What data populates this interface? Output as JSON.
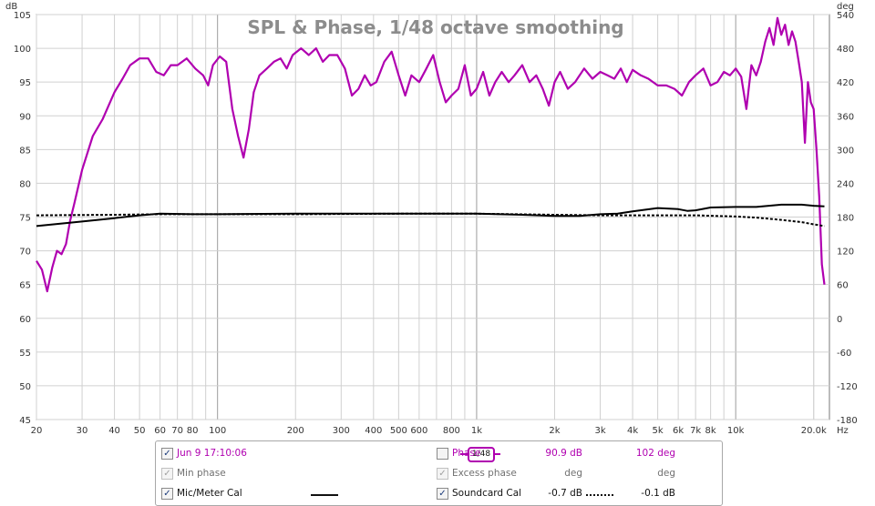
{
  "chart_data": {
    "type": "line",
    "title": "SPL & Phase, 1/48 octave smoothing",
    "y_left_unit": "dB",
    "y_right_unit": "deg",
    "x_unit": "Hz",
    "x_scale": "log",
    "xlim": [
      20,
      23000
    ],
    "ylim_left": [
      45,
      105
    ],
    "ylim_right": [
      -180,
      540
    ],
    "x_tick_labels": [
      {
        "v": 20,
        "t": "20"
      },
      {
        "v": 30,
        "t": "30"
      },
      {
        "v": 40,
        "t": "40"
      },
      {
        "v": 50,
        "t": "50"
      },
      {
        "v": 60,
        "t": "60"
      },
      {
        "v": 70,
        "t": "70"
      },
      {
        "v": 80,
        "t": "80"
      },
      {
        "v": 100,
        "t": "100"
      },
      {
        "v": 200,
        "t": "200"
      },
      {
        "v": 300,
        "t": "300"
      },
      {
        "v": 400,
        "t": "400"
      },
      {
        "v": 500,
        "t": "500"
      },
      {
        "v": 600,
        "t": "600"
      },
      {
        "v": 800,
        "t": "800"
      },
      {
        "v": 1000,
        "t": "1k"
      },
      {
        "v": 2000,
        "t": "2k"
      },
      {
        "v": 3000,
        "t": "3k"
      },
      {
        "v": 4000,
        "t": "4k"
      },
      {
        "v": 5000,
        "t": "5k"
      },
      {
        "v": 6000,
        "t": "6k"
      },
      {
        "v": 7000,
        "t": "7k"
      },
      {
        "v": 8000,
        "t": "8k"
      },
      {
        "v": 10000,
        "t": "10k"
      },
      {
        "v": 20000,
        "t": "20.0k"
      }
    ],
    "y_left_ticks": [
      45,
      50,
      55,
      60,
      65,
      70,
      75,
      80,
      85,
      90,
      95,
      100,
      105
    ],
    "y_right_ticks": [
      -180,
      -120,
      -60,
      0,
      60,
      120,
      180,
      240,
      300,
      360,
      420,
      480,
      540
    ],
    "grid": true,
    "series": [
      {
        "name": "Jun 9 17:10:06",
        "color": "#b000b0",
        "axis": "left",
        "points": [
          [
            20,
            68.5
          ],
          [
            21,
            67.2
          ],
          [
            22,
            64
          ],
          [
            23,
            67.5
          ],
          [
            24,
            70
          ],
          [
            25,
            69.5
          ],
          [
            26,
            71
          ],
          [
            27,
            74.5
          ],
          [
            28,
            77
          ],
          [
            30,
            82
          ],
          [
            33,
            87
          ],
          [
            36,
            89.5
          ],
          [
            40,
            93.5
          ],
          [
            43,
            95.5
          ],
          [
            46,
            97.5
          ],
          [
            50,
            98.5
          ],
          [
            54,
            98.5
          ],
          [
            58,
            96.5
          ],
          [
            62,
            96
          ],
          [
            66,
            97.5
          ],
          [
            70,
            97.5
          ],
          [
            76,
            98.5
          ],
          [
            82,
            97
          ],
          [
            88,
            96
          ],
          [
            92,
            94.5
          ],
          [
            96,
            97.5
          ],
          [
            102,
            98.8
          ],
          [
            108,
            98
          ],
          [
            114,
            91
          ],
          [
            120,
            87
          ],
          [
            126,
            83.8
          ],
          [
            132,
            88
          ],
          [
            138,
            93.5
          ],
          [
            145,
            96
          ],
          [
            155,
            97
          ],
          [
            165,
            98
          ],
          [
            175,
            98.5
          ],
          [
            185,
            97
          ],
          [
            195,
            99
          ],
          [
            210,
            100
          ],
          [
            225,
            99
          ],
          [
            240,
            100
          ],
          [
            255,
            98
          ],
          [
            270,
            99
          ],
          [
            290,
            99
          ],
          [
            310,
            97
          ],
          [
            330,
            93
          ],
          [
            350,
            94
          ],
          [
            370,
            96
          ],
          [
            390,
            94.5
          ],
          [
            410,
            95
          ],
          [
            440,
            98
          ],
          [
            470,
            99.5
          ],
          [
            500,
            96
          ],
          [
            530,
            93
          ],
          [
            560,
            96
          ],
          [
            600,
            95
          ],
          [
            640,
            97
          ],
          [
            680,
            99
          ],
          [
            720,
            95
          ],
          [
            760,
            92
          ],
          [
            800,
            93
          ],
          [
            850,
            94
          ],
          [
            900,
            97.5
          ],
          [
            950,
            93
          ],
          [
            1000,
            94
          ],
          [
            1060,
            96.5
          ],
          [
            1120,
            93
          ],
          [
            1180,
            95
          ],
          [
            1250,
            96.5
          ],
          [
            1330,
            95
          ],
          [
            1400,
            96
          ],
          [
            1500,
            97.5
          ],
          [
            1600,
            95
          ],
          [
            1700,
            96
          ],
          [
            1800,
            94
          ],
          [
            1900,
            91.5
          ],
          [
            2000,
            95
          ],
          [
            2100,
            96.5
          ],
          [
            2250,
            94
          ],
          [
            2400,
            95
          ],
          [
            2600,
            97
          ],
          [
            2800,
            95.5
          ],
          [
            3000,
            96.5
          ],
          [
            3200,
            96
          ],
          [
            3400,
            95.5
          ],
          [
            3600,
            97
          ],
          [
            3800,
            95
          ],
          [
            4000,
            96.8
          ],
          [
            4300,
            96
          ],
          [
            4600,
            95.5
          ],
          [
            5000,
            94.5
          ],
          [
            5400,
            94.5
          ],
          [
            5800,
            94
          ],
          [
            6200,
            93
          ],
          [
            6600,
            95
          ],
          [
            7000,
            96
          ],
          [
            7500,
            97
          ],
          [
            8000,
            94.5
          ],
          [
            8500,
            95
          ],
          [
            9000,
            96.5
          ],
          [
            9500,
            96
          ],
          [
            10000,
            97
          ],
          [
            10500,
            95.8
          ],
          [
            11000,
            91
          ],
          [
            11500,
            97.5
          ],
          [
            12000,
            96
          ],
          [
            12500,
            98
          ],
          [
            13000,
            101
          ],
          [
            13500,
            103
          ],
          [
            14000,
            100.5
          ],
          [
            14500,
            104.5
          ],
          [
            15000,
            102
          ],
          [
            15500,
            103.5
          ],
          [
            16000,
            100.5
          ],
          [
            16500,
            102.5
          ],
          [
            17000,
            101
          ],
          [
            17500,
            98
          ],
          [
            18000,
            95
          ],
          [
            18500,
            86
          ],
          [
            19000,
            95
          ],
          [
            19500,
            92
          ],
          [
            20000,
            91
          ],
          [
            20500,
            85
          ],
          [
            21000,
            78
          ],
          [
            21500,
            68
          ],
          [
            22000,
            65
          ]
        ]
      },
      {
        "name": "Phase",
        "color": "#000000",
        "axis": "right",
        "style": "solid",
        "points": [
          [
            20,
            164
          ],
          [
            30,
            172
          ],
          [
            40,
            178
          ],
          [
            50,
            183
          ],
          [
            60,
            186
          ],
          [
            80,
            185
          ],
          [
            100,
            185
          ],
          [
            200,
            186
          ],
          [
            400,
            186
          ],
          [
            800,
            186
          ],
          [
            1000,
            186
          ],
          [
            1500,
            184
          ],
          [
            2000,
            182
          ],
          [
            2500,
            182
          ],
          [
            3000,
            185
          ],
          [
            3500,
            186
          ],
          [
            4000,
            190
          ],
          [
            5000,
            196
          ],
          [
            6000,
            194
          ],
          [
            6500,
            191
          ],
          [
            7000,
            192
          ],
          [
            8000,
            197
          ],
          [
            10000,
            198
          ],
          [
            12000,
            198
          ],
          [
            15000,
            202
          ],
          [
            18000,
            202
          ],
          [
            20000,
            200
          ],
          [
            22000,
            199
          ]
        ]
      },
      {
        "name": "Min phase",
        "color": "#000000",
        "axis": "right",
        "style": "dotted",
        "points": [
          [
            20,
            183
          ],
          [
            40,
            184
          ],
          [
            60,
            185
          ],
          [
            100,
            185
          ],
          [
            200,
            185
          ],
          [
            500,
            186
          ],
          [
            1000,
            186
          ],
          [
            2000,
            184
          ],
          [
            3000,
            183
          ],
          [
            4000,
            183
          ],
          [
            5000,
            183
          ],
          [
            7000,
            183
          ],
          [
            10000,
            181
          ],
          [
            12000,
            179
          ],
          [
            15000,
            175
          ],
          [
            18000,
            171
          ],
          [
            20000,
            167
          ],
          [
            22000,
            164
          ]
        ]
      }
    ]
  },
  "legend": {
    "row1": {
      "measurement_label": "Jun 9 17:10:06",
      "smoothing_badge": "1/48",
      "measurement_value": "90.9 dB",
      "phase_label": "Phase",
      "phase_value": "102 deg"
    },
    "row2": {
      "min_phase_label": "Min phase",
      "min_phase_value": "deg",
      "excess_phase_label": "Excess phase",
      "excess_phase_value": "deg"
    },
    "row3": {
      "mic_cal_label": "Mic/Meter Cal",
      "mic_cal_value": "-0.7 dB",
      "soundcard_cal_label": "Soundcard Cal",
      "soundcard_cal_value": "-0.1 dB"
    }
  }
}
